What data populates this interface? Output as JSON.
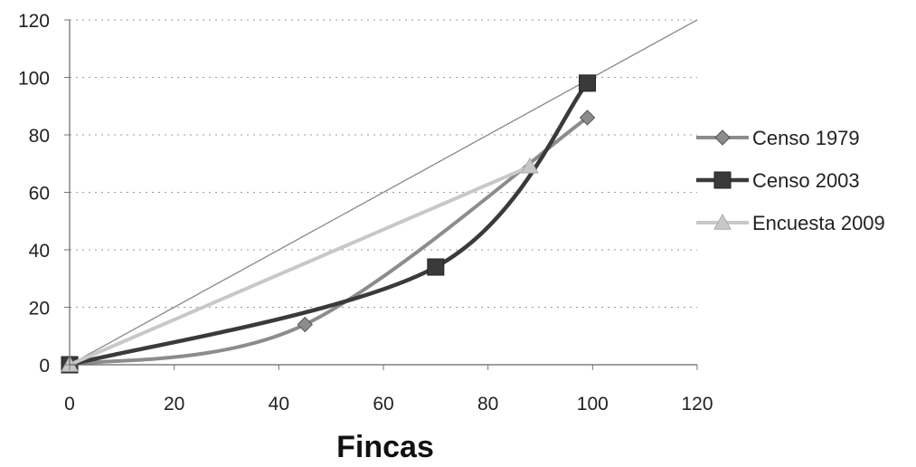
{
  "chart_data": {
    "type": "scatter",
    "title": "",
    "xlabel": "Fincas",
    "ylabel": "",
    "xlim": [
      0,
      120
    ],
    "ylim": [
      0,
      120
    ],
    "xticks": [
      "0",
      "20",
      "40",
      "60",
      "80",
      "100",
      "120"
    ],
    "yticks": [
      "0",
      "20",
      "40",
      "60",
      "80",
      "100",
      "120"
    ],
    "grid": "horizontal dotted",
    "legend_position": "right",
    "reference_line": {
      "from": [
        0,
        0
      ],
      "to": [
        120,
        120
      ],
      "color": "#888888"
    },
    "series": [
      {
        "name": "Censo 1979",
        "marker": "diamond",
        "color": "#8c8c8c",
        "x": [
          0,
          45,
          99
        ],
        "y": [
          0,
          14,
          86
        ]
      },
      {
        "name": "Censo 2003",
        "marker": "square",
        "color": "#3a3a3a",
        "x": [
          0,
          70,
          99
        ],
        "y": [
          0,
          34,
          98
        ]
      },
      {
        "name": "Encuesta 2009",
        "marker": "triangle",
        "color": "#c8c8c8",
        "x": [
          0,
          88
        ],
        "y": [
          0,
          69
        ]
      }
    ]
  }
}
